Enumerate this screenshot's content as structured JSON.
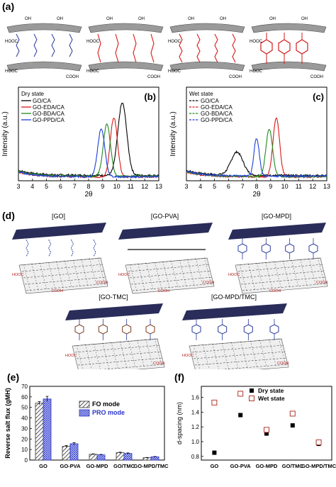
{
  "panels": {
    "a": "(a)",
    "b": "(b)",
    "c": "(c)",
    "d": "(d)",
    "e": "(e)",
    "f": "(f)"
  },
  "panel_a": {
    "structures": [
      "GO/CA",
      "GO-EDA/CA",
      "GO-BDA/CA",
      "GO-PPD/CA"
    ]
  },
  "panel_d": {
    "structures": [
      "[GO]",
      "[GO-PVA]",
      "[GO-MPD]",
      "[GO-TMC]",
      "[GO-MPD/TMC]"
    ]
  },
  "colors": {
    "black": "#000000",
    "red": "#d71a1a",
    "green": "#1f8a1f",
    "blue": "#1d3fd6",
    "sheet": "#2a2d5a",
    "linker": "#2a3a9a",
    "fo_hatch": "#555555",
    "pro_hatch": "#2a35c9",
    "wet": "#b03a2e"
  },
  "chart_data": [
    {
      "type": "line",
      "panel": "(b)",
      "legend_title": "Dry state",
      "xlabel": "2θ",
      "ylabel": "Intensity (a.u.)",
      "xlim": [
        3,
        13
      ],
      "xticks": [
        3,
        4,
        5,
        6,
        7,
        8,
        9,
        10,
        11,
        12,
        13
      ],
      "series": [
        {
          "name": "GO/CA",
          "color": "#000000",
          "peak_x": 10.4,
          "peak_h": 1.0,
          "width": 0.75
        },
        {
          "name": "GO-EDA/CA",
          "color": "#d71a1a",
          "peak_x": 9.8,
          "peak_h": 0.82,
          "width": 0.6
        },
        {
          "name": "GO-BDA/CA",
          "color": "#1f8a1f",
          "peak_x": 9.3,
          "peak_h": 0.72,
          "width": 0.6
        },
        {
          "name": "GO-PPD/CA",
          "color": "#1d3fd6",
          "peak_x": 8.9,
          "peak_h": 0.66,
          "width": 0.6
        }
      ]
    },
    {
      "type": "line",
      "panel": "(c)",
      "legend_title": "Wet state",
      "xlabel": "2θ",
      "ylabel": "Intensity (a.u.)",
      "xlim": [
        3,
        13
      ],
      "xticks": [
        3,
        4,
        5,
        6,
        7,
        8,
        9,
        10,
        11,
        12,
        13
      ],
      "series": [
        {
          "name": "GO/CA",
          "color": "#000000",
          "peak_x": 6.6,
          "peak_h": 0.32,
          "width": 1.0
        },
        {
          "name": "GO-EDA/CA",
          "color": "#d71a1a",
          "peak_x": 9.4,
          "peak_h": 0.82,
          "width": 0.55
        },
        {
          "name": "GO-BDA/CA",
          "color": "#1f8a1f",
          "peak_x": 8.9,
          "peak_h": 0.66,
          "width": 0.55
        },
        {
          "name": "GO-PPD/CA",
          "color": "#1d3fd6",
          "peak_x": 8.0,
          "peak_h": 0.52,
          "width": 0.45
        }
      ]
    },
    {
      "type": "bar",
      "panel": "(e)",
      "categories": [
        "GO",
        "GO-PVA",
        "GO-MPD",
        "GO/TMC",
        "GO-MPD/TMC"
      ],
      "series": [
        {
          "name": "FO mode",
          "values": [
            54,
            13,
            5.5,
            7,
            2.2
          ],
          "errors": [
            1.5,
            0.8,
            0.4,
            0.5,
            0.3
          ]
        },
        {
          "name": "PRO mode",
          "values": [
            58,
            15.5,
            5.0,
            6.3,
            3.1
          ],
          "errors": [
            2.5,
            1.0,
            0.4,
            0.5,
            0.3
          ]
        }
      ],
      "ylabel": "Reverse salt flux (gMH)",
      "ylim": [
        0,
        70
      ],
      "yticks": [
        0,
        10,
        20,
        30,
        40,
        50,
        60,
        70
      ]
    },
    {
      "type": "scatter",
      "panel": "(f)",
      "categories": [
        "GO",
        "GO-PVA",
        "GO-MPD",
        "GO/TMC",
        "GO-MPD/TMC"
      ],
      "series": [
        {
          "name": "Dry state",
          "values": [
            0.85,
            1.36,
            1.11,
            1.22,
            0.97
          ],
          "errors": [
            0.01,
            0.02,
            0.02,
            0.02,
            0.02
          ]
        },
        {
          "name": "Wet state",
          "values": [
            1.53,
            1.65,
            1.16,
            1.38,
            0.99
          ],
          "errors": [
            0.03,
            0.04,
            0.02,
            0.03,
            0.03
          ]
        }
      ],
      "ylabel": "d-spacing (nm)",
      "ylim": [
        0.75,
        1.75
      ],
      "yticks": [
        "0.8",
        "1.0",
        "1.2",
        "1.4",
        "1.6"
      ]
    }
  ]
}
